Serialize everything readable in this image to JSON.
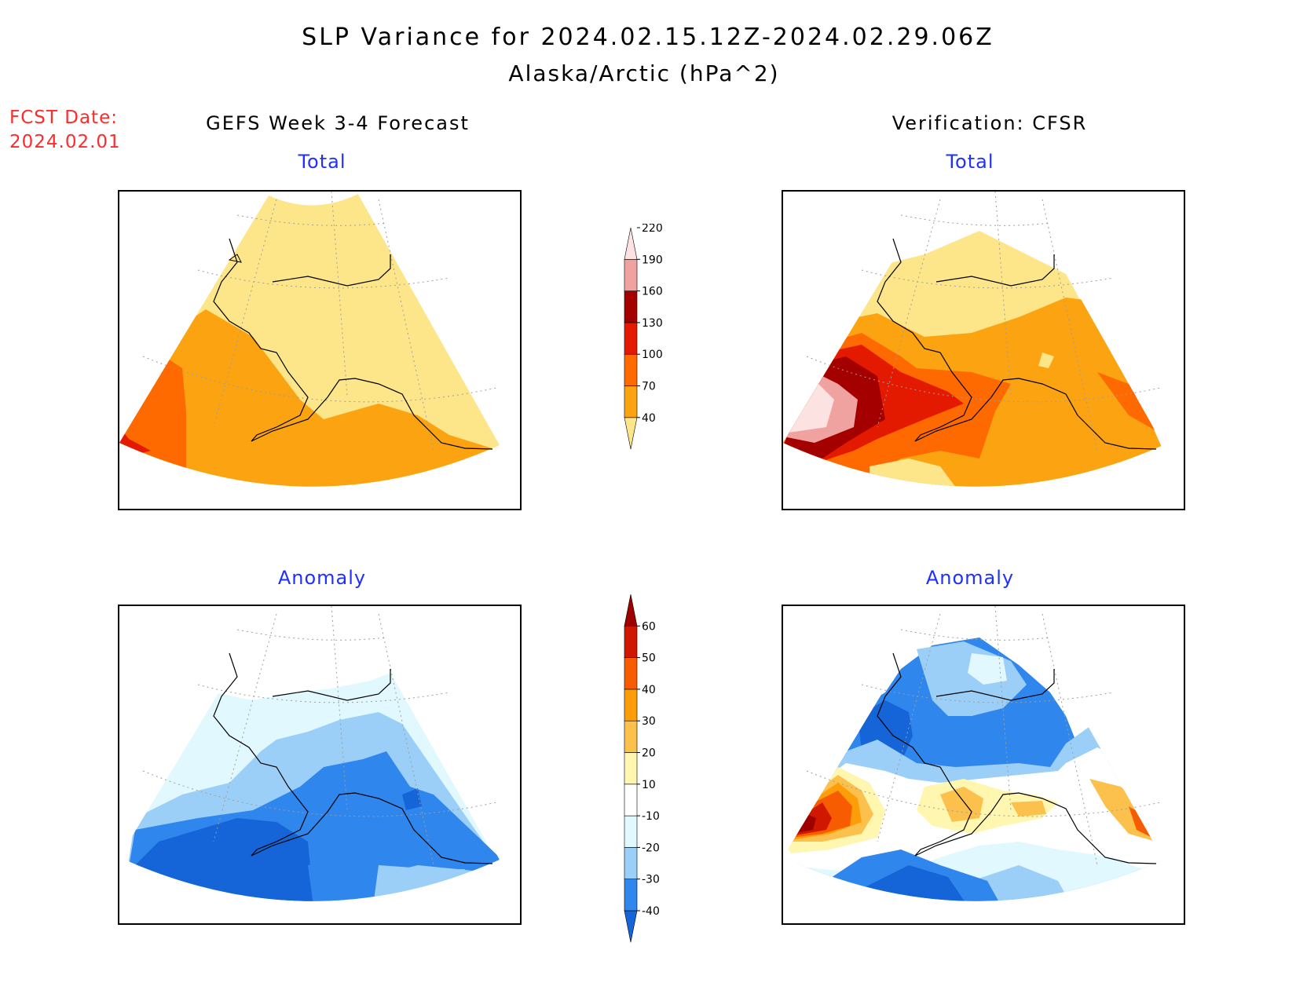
{
  "figure": {
    "title_line1": "SLP Variance for 2024.02.15.12Z-2024.02.29.06Z",
    "title_line2": "Alaska/Arctic (hPa^2)",
    "fcst_label": "FCST Date:",
    "fcst_date": "2024.02.01",
    "left_heading": "GEFS Week 3-4 Forecast",
    "right_heading": "Verification: CFSR"
  },
  "panels": {
    "forecast_total": {
      "title": "Total"
    },
    "verification_total": {
      "title": "Total"
    },
    "forecast_anomaly": {
      "title": "Anomaly"
    },
    "verification_anomaly": {
      "title": "Anomaly"
    }
  },
  "colorbars": {
    "total": {
      "levels": [
        "40",
        "70",
        "100",
        "130",
        "160",
        "190",
        "220"
      ],
      "colors": [
        "#fde68a",
        "#fca311",
        "#ff6a00",
        "#e41a00",
        "#a40000",
        "#f0a2a0",
        "#fde2e2"
      ]
    },
    "anomaly": {
      "levels": [
        "-40",
        "-30",
        "-20",
        "-10",
        "10",
        "20",
        "30",
        "40",
        "50",
        "60"
      ],
      "colors": [
        "#1565d8",
        "#2f86ec",
        "#9ccff7",
        "#e1f8fe",
        "#ffffff",
        "#fff6b0",
        "#fcc04c",
        "#fd9d0a",
        "#f75d00",
        "#d01800",
        "#9e0000"
      ]
    }
  },
  "colors": {
    "title_red": "#ff2a2a",
    "panel_title_blue": "#2030ff"
  }
}
